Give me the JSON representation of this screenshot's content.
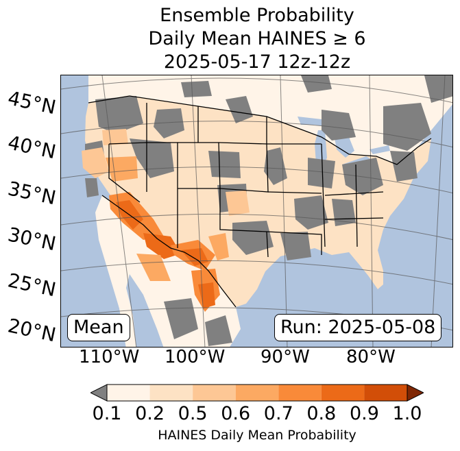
{
  "title": {
    "line1": "Ensemble Probability",
    "line2": "Daily Mean HAINES ≥ 6",
    "line3": "2025-05-17 12z-12z"
  },
  "lat_labels": [
    "45°N",
    "40°N",
    "35°N",
    "30°N",
    "25°N",
    "20°N"
  ],
  "lon_labels": [
    "110°W",
    "100°W",
    "90°W",
    "80°W"
  ],
  "mean_label": "Mean",
  "run_label": "Run: 2025-05-08",
  "colorbar": {
    "ticks": [
      "0.1",
      "0.2",
      "0.5",
      "0.6",
      "0.7",
      "0.8",
      "0.9",
      "1.0"
    ],
    "colors": [
      "#fff4e8",
      "#fde2c4",
      "#fdc795",
      "#fca962",
      "#f98a39",
      "#ec6a18",
      "#d24e08"
    ],
    "under_color": "#808080",
    "over_color": "#7f2704",
    "label": "HAINES Daily Mean Probability"
  },
  "map_colors": {
    "ocean": "#b0c4de",
    "lakes": "#b0c4de",
    "missing": "#808080"
  }
}
